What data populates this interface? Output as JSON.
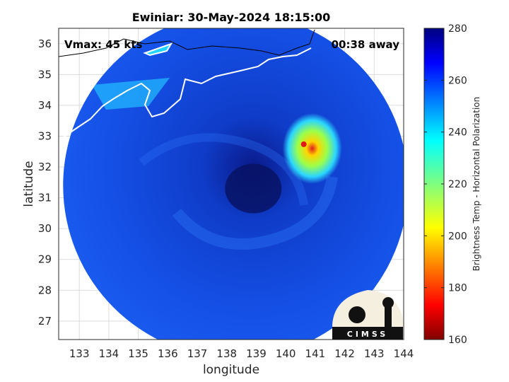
{
  "chart_data": {
    "type": "heatmap",
    "title": "Ewiniar: 30-May-2024 18:15:00",
    "xlabel": "longitude",
    "ylabel": "latitude",
    "xlim": [
      132.3,
      144.0
    ],
    "ylim": [
      26.4,
      36.5
    ],
    "xticks": [
      133,
      134,
      135,
      136,
      137,
      138,
      139,
      140,
      141,
      142,
      143,
      144
    ],
    "yticks": [
      27,
      28,
      29,
      30,
      31,
      32,
      33,
      34,
      35,
      36
    ],
    "grid": true,
    "annotations": {
      "vmax": "Vmax: 45 kts",
      "time_offset": "00:38 away"
    },
    "swath": {
      "center_lon": 138.3,
      "center_lat": 31.4,
      "radius_deg_lon": 5.85
    },
    "storm_center": {
      "lon": 138.9,
      "lat": 31.3
    },
    "convection": {
      "lon": 140.9,
      "lat": 32.6,
      "min_temp": 175
    },
    "colorbar": {
      "label": "Brightness Temp - Horizontal Polarization",
      "min": 160,
      "max": 280,
      "ticks": [
        160,
        180,
        200,
        220,
        240,
        260,
        280
      ],
      "colormap": "jet"
    },
    "logo_text": "CIMSS",
    "colors": {
      "background": "#ffffff",
      "grid": "#dcdcdc",
      "coast": "#ffffff",
      "land_outline": "#000000"
    }
  }
}
